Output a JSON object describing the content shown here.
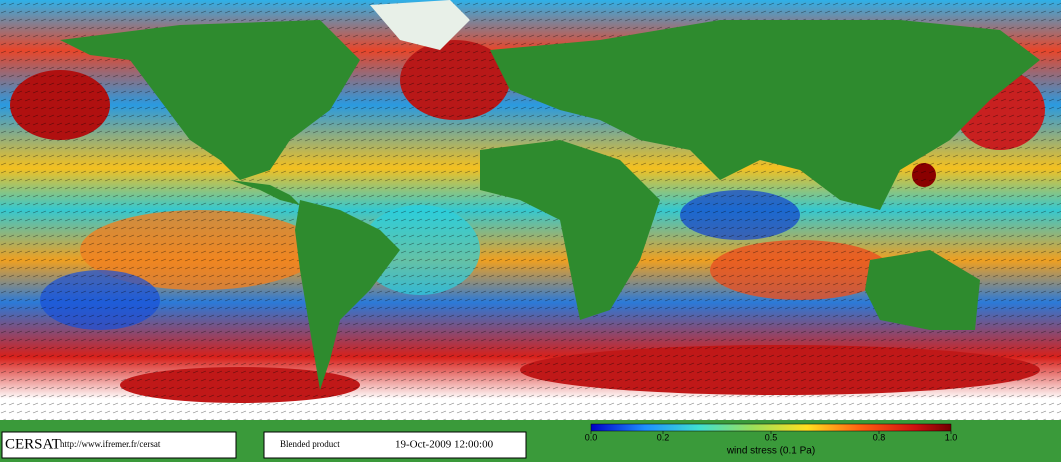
{
  "footer": {
    "logo": "CERSAT",
    "url": "http://www.ifremer.fr/cersat",
    "product": "Blended product",
    "date": "19-Oct-2009 12:00:00"
  },
  "colorbar": {
    "label": "wind stress (0.1 Pa)",
    "ticks": [
      {
        "value": 0,
        "label": "0.0"
      },
      0.2,
      0.5,
      0.8,
      {
        "value": 1,
        "label": "1.0"
      }
    ]
  }
}
